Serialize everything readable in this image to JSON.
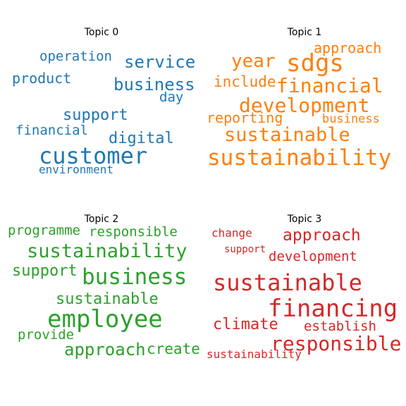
{
  "topics": [
    {
      "title": "Topic 0",
      "color": "#1f77b4",
      "words": [
        "operation",
        "service",
        "product",
        "business",
        "day",
        "support",
        "financial",
        "digital",
        "customer",
        "environment"
      ]
    },
    {
      "title": "Topic 1",
      "color": "#ff7f0e",
      "words": [
        "approach",
        "year",
        "sdgs",
        "include",
        "financial",
        "development",
        "reporting",
        "business",
        "sustainable",
        "sustainability"
      ]
    },
    {
      "title": "Topic 2",
      "color": "#2ca02c",
      "words": [
        "programme",
        "responsible",
        "sustainability",
        "support",
        "business",
        "sustainable",
        "employee",
        "provide",
        "approach",
        "create"
      ]
    },
    {
      "title": "Topic 3",
      "color": "#d62728",
      "words": [
        "change",
        "approach",
        "support",
        "development",
        "sustainable",
        "financing",
        "climate",
        "establish",
        "responsible",
        "sustainability"
      ]
    }
  ]
}
